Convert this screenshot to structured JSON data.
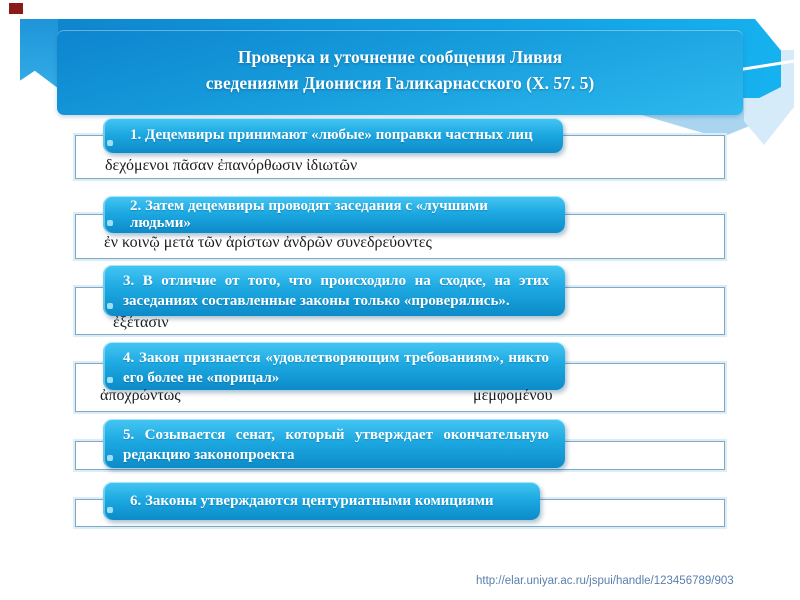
{
  "title": {
    "line1": "Проверка и уточнение сообщения Ливия",
    "line2": "сведениями Дионисия Галикарнасского (X. 57. 5)"
  },
  "steps": [
    {
      "label": "1. Децемвиры принимают «любые» поправки частных лиц",
      "greek": "δεχόμενοι πᾶσαν ἐπανόρθωσιν ἰδιωτῶν"
    },
    {
      "label": "2. Затем децемвиры проводят заседания с «лучшими людьми»",
      "greek": "ἐν κοινῷ μετὰ τῶν ἀρίστων ἀνδρῶν συνεδρεύοντες"
    },
    {
      "label": "3. В отличие от того, что происходило на сходке, на этих заседаниях составленные законы только «проверялись».",
      "greek": "ἐξέτασιν"
    },
    {
      "label": "4. Закон признается «удовлетворяющим требованиям», никто его более не «порицал»",
      "greek_left": "ἀποχρώντως",
      "greek_right": "μεμφομένου"
    },
    {
      "label": "5. Созывается сенат, который утверждает окончательную редакцию законопроекта"
    },
    {
      "label": "6. Законы утверждаются центуриатными комициями"
    }
  ],
  "footer": {
    "url": "http://elar.uniyar.ac.ru/jspui/handle/123456789/903"
  },
  "colors": {
    "band_blue_dark": "#0f86cd",
    "band_blue_light": "#16b2f0",
    "banner_top": "#0d85cf",
    "banner_bottom": "#2cb9ee",
    "step_box_top": "#45c6f3",
    "step_box_bottom": "#0c8bc8",
    "track_border": "#7fa9c6",
    "swoosh_mid": "#aad5f0",
    "swoosh_pale": "#d6ebf9",
    "greek_text": "#1c1c1c",
    "url_text": "#5a7fae",
    "corner_marker": "#8b1a1a"
  }
}
